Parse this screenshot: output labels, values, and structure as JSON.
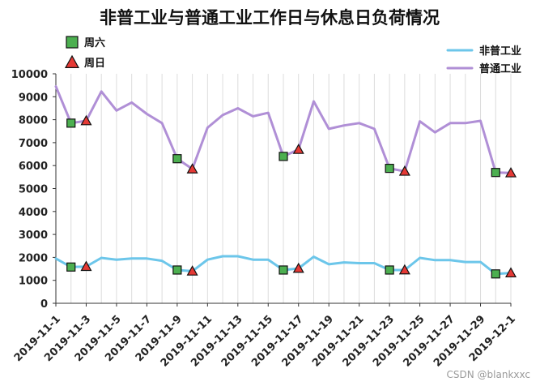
{
  "chart_data": {
    "type": "line",
    "title": "非普工业与普通工业工作日与休息日负荷情况",
    "xlabel": "",
    "ylabel": "",
    "ylim": [
      0,
      10000
    ],
    "yticks": [
      0,
      1000,
      2000,
      3000,
      4000,
      5000,
      6000,
      7000,
      8000,
      9000,
      10000
    ],
    "x": [
      "2019-11-1",
      "2019-11-2",
      "2019-11-3",
      "2019-11-4",
      "2019-11-5",
      "2019-11-6",
      "2019-11-7",
      "2019-11-8",
      "2019-11-9",
      "2019-11-10",
      "2019-11-11",
      "2019-11-12",
      "2019-11-13",
      "2019-11-14",
      "2019-11-15",
      "2019-11-16",
      "2019-11-17",
      "2019-11-18",
      "2019-11-19",
      "2019-11-20",
      "2019-11-21",
      "2019-11-22",
      "2019-11-23",
      "2019-11-24",
      "2019-11-25",
      "2019-11-26",
      "2019-11-27",
      "2019-11-28",
      "2019-11-29",
      "2019-11-30",
      "2019-12-1"
    ],
    "xtick_labels": [
      "2019-11-1",
      "2019-11-3",
      "2019-11-5",
      "2019-11-7",
      "2019-11-9",
      "2019-11-11",
      "2019-11-13",
      "2019-11-15",
      "2019-11-17",
      "2019-11-19",
      "2019-11-21",
      "2019-11-23",
      "2019-11-25",
      "2019-11-27",
      "2019-11-29",
      "2019-12-1"
    ],
    "grid": "vertical",
    "series": [
      {
        "name": "非普工业",
        "color": "#6cc6ea",
        "values": [
          1950,
          1580,
          1600,
          1980,
          1900,
          1950,
          1950,
          1850,
          1450,
          1400,
          1900,
          2050,
          2050,
          1900,
          1900,
          1450,
          1520,
          2030,
          1700,
          1780,
          1750,
          1750,
          1450,
          1450,
          1980,
          1880,
          1880,
          1800,
          1800,
          1280,
          1320
        ]
      },
      {
        "name": "普通工业",
        "color": "#b08fd6",
        "values": [
          9450,
          7850,
          7950,
          9230,
          8400,
          8750,
          8250,
          7850,
          6300,
          5850,
          7650,
          8200,
          8500,
          8150,
          8300,
          6400,
          6700,
          8800,
          7600,
          7750,
          7850,
          7600,
          5880,
          5750,
          7930,
          7450,
          7850,
          7850,
          7950,
          5700,
          5680
        ]
      }
    ],
    "markers": [
      {
        "label": "周六",
        "shape": "square",
        "color": "#4caf50",
        "points": [
          {
            "x": "2019-11-2",
            "series": "非普工业"
          },
          {
            "x": "2019-11-2",
            "series": "普通工业"
          },
          {
            "x": "2019-11-9",
            "series": "非普工业"
          },
          {
            "x": "2019-11-9",
            "series": "普通工业"
          },
          {
            "x": "2019-11-16",
            "series": "非普工业"
          },
          {
            "x": "2019-11-16",
            "series": "普通工业"
          },
          {
            "x": "2019-11-23",
            "series": "非普工业"
          },
          {
            "x": "2019-11-23",
            "series": "普通工业"
          },
          {
            "x": "2019-11-30",
            "series": "非普工业"
          },
          {
            "x": "2019-11-30",
            "series": "普通工业"
          }
        ]
      },
      {
        "label": "周日",
        "shape": "triangle",
        "color": "#e53935",
        "points": [
          {
            "x": "2019-11-3",
            "series": "非普工业"
          },
          {
            "x": "2019-11-3",
            "series": "普通工业"
          },
          {
            "x": "2019-11-10",
            "series": "非普工业"
          },
          {
            "x": "2019-11-10",
            "series": "普通工业"
          },
          {
            "x": "2019-11-17",
            "series": "非普工业"
          },
          {
            "x": "2019-11-17",
            "series": "普通工业"
          },
          {
            "x": "2019-11-24",
            "series": "非普工业"
          },
          {
            "x": "2019-11-24",
            "series": "普通工业"
          },
          {
            "x": "2019-12-1",
            "series": "非普工业"
          },
          {
            "x": "2019-12-1",
            "series": "普通工业"
          }
        ]
      }
    ],
    "legend_lines": "top-right",
    "legend_markers": "top-left"
  },
  "watermark": "CSDN @blankxxc"
}
